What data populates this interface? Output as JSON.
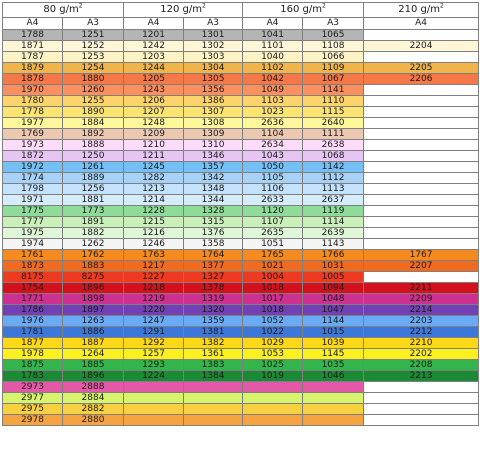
{
  "groups": [
    {
      "weight": "80 g/m",
      "unit_sup": "2",
      "sizes": [
        "A4",
        "A3"
      ]
    },
    {
      "weight": "120 g/m",
      "unit_sup": "2",
      "sizes": [
        "A4",
        "A3"
      ]
    },
    {
      "weight": "160 g/m",
      "unit_sup": "2",
      "sizes": [
        "A4",
        "A3"
      ]
    },
    {
      "weight": "210 g/m",
      "unit_sup": "2",
      "sizes": [
        "A4"
      ]
    }
  ],
  "rows": [
    {
      "color": "#b4b4b4",
      "cells": [
        "1788",
        "1251",
        "1201",
        "1301",
        "1041",
        "1065",
        ""
      ],
      "last_color": "#ffffff"
    },
    {
      "color": "#fff6d8",
      "cells": [
        "1871",
        "1252",
        "1242",
        "1302",
        "1101",
        "1108",
        "2204"
      ]
    },
    {
      "color": "#fff3c6",
      "cells": [
        "1787",
        "1253",
        "1203",
        "1303",
        "1040",
        "1066",
        ""
      ]
    },
    {
      "color": "#f0b44a",
      "cells": [
        "1879",
        "1254",
        "1244",
        "1304",
        "1102",
        "1109",
        "2205"
      ]
    },
    {
      "color": "#f47848",
      "cells": [
        "1878",
        "1880",
        "1205",
        "1305",
        "1042",
        "1067",
        "2206"
      ]
    },
    {
      "color": "#fb8f5e",
      "cells": [
        "1970",
        "1260",
        "1243",
        "1356",
        "1049",
        "1141",
        ""
      ]
    },
    {
      "color": "#fbd46c",
      "cells": [
        "1780",
        "1255",
        "1206",
        "1386",
        "1103",
        "1110",
        ""
      ]
    },
    {
      "color": "#fce470",
      "cells": [
        "1778",
        "1890",
        "1207",
        "1307",
        "1023",
        "1115",
        ""
      ]
    },
    {
      "color": "#fef79c",
      "cells": [
        "1977",
        "1884",
        "1248",
        "1308",
        "2636",
        "2640",
        ""
      ]
    },
    {
      "color": "#ecc8b0",
      "cells": [
        "1769",
        "1892",
        "1209",
        "1309",
        "1104",
        "1111",
        ""
      ]
    },
    {
      "color": "#fbdcfb",
      "cells": [
        "1973",
        "1888",
        "1210",
        "1310",
        "2634",
        "2638",
        ""
      ]
    },
    {
      "color": "#e6c4f4",
      "cells": [
        "1872",
        "1250",
        "1211",
        "1346",
        "1043",
        "1068",
        ""
      ]
    },
    {
      "color": "#74c0f4",
      "cells": [
        "1972",
        "1261",
        "1245",
        "1357",
        "1050",
        "1142",
        ""
      ]
    },
    {
      "color": "#a6d2f8",
      "cells": [
        "1774",
        "1889",
        "1282",
        "1342",
        "1105",
        "1112",
        ""
      ]
    },
    {
      "color": "#c4e2fb",
      "cells": [
        "1798",
        "1256",
        "1213",
        "1348",
        "1106",
        "1113",
        ""
      ]
    },
    {
      "color": "#d4ecfc",
      "cells": [
        "1971",
        "1881",
        "1214",
        "1344",
        "2633",
        "2637",
        ""
      ]
    },
    {
      "color": "#8edc98",
      "cells": [
        "1775",
        "1773",
        "1228",
        "1328",
        "1120",
        "1119",
        ""
      ]
    },
    {
      "color": "#c8f0b8",
      "cells": [
        "1777",
        "1891",
        "1215",
        "1315",
        "1107",
        "1114",
        ""
      ]
    },
    {
      "color": "#e0f6d8",
      "cells": [
        "1975",
        "1882",
        "1216",
        "1376",
        "2635",
        "2639",
        ""
      ]
    },
    {
      "color": "#f4f4f4",
      "cells": [
        "1974",
        "1262",
        "1246",
        "1358",
        "1051",
        "1143",
        ""
      ]
    },
    {
      "color": "#f58a1e",
      "cells": [
        "1761",
        "1762",
        "1763",
        "1764",
        "1765",
        "1766",
        "1767"
      ]
    },
    {
      "color": "#f06a20",
      "cells": [
        "1873",
        "1883",
        "1217",
        "1377",
        "1021",
        "1031",
        "2207"
      ]
    },
    {
      "color": "#ee3a20",
      "cells": [
        "8175",
        "8275",
        "1227",
        "1327",
        "1004",
        "1005",
        ""
      ]
    },
    {
      "color": "#d4101c",
      "cells": [
        "1754",
        "1896",
        "1218",
        "1378",
        "1018",
        "1094",
        "2211"
      ]
    },
    {
      "color": "#cc3090",
      "cells": [
        "1771",
        "1898",
        "1219",
        "1319",
        "1017",
        "1048",
        "2209"
      ]
    },
    {
      "color": "#7040b4",
      "cells": [
        "1786",
        "1897",
        "1220",
        "1320",
        "1018",
        "1047",
        "2214"
      ]
    },
    {
      "color": "#6aaaf2",
      "cells": [
        "1976",
        "1263",
        "1247",
        "1359",
        "1052",
        "1144",
        "2203"
      ]
    },
    {
      "color": "#3c78dc",
      "cells": [
        "1781",
        "1886",
        "1291",
        "1381",
        "1022",
        "1015",
        "2212"
      ]
    },
    {
      "color": "#fcd818",
      "cells": [
        "1877",
        "1887",
        "1292",
        "1382",
        "1029",
        "1039",
        "2210"
      ]
    },
    {
      "color": "#fcf020",
      "cells": [
        "1978",
        "1264",
        "1257",
        "1361",
        "1053",
        "1145",
        "2202"
      ]
    },
    {
      "color": "#34b44c",
      "cells": [
        "1875",
        "1885",
        "1293",
        "1383",
        "1025",
        "1035",
        "2208"
      ]
    },
    {
      "color": "#1a8a34",
      "cells": [
        "1783",
        "1896",
        "1224",
        "1384",
        "1019",
        "1046",
        "2213"
      ]
    },
    {
      "color": "#e458a8",
      "cells": [
        "2973",
        "2888",
        "",
        "",
        "",
        "",
        ""
      ]
    },
    {
      "color": "#d8f46c",
      "cells": [
        "2977",
        "2884",
        "",
        "",
        "",
        "",
        ""
      ]
    },
    {
      "color": "#f6d040",
      "cells": [
        "2975",
        "2882",
        "",
        "",
        "",
        "",
        ""
      ]
    },
    {
      "color": "#f6a440",
      "cells": [
        "2978",
        "2880",
        "",
        "",
        "",
        "",
        ""
      ]
    }
  ]
}
